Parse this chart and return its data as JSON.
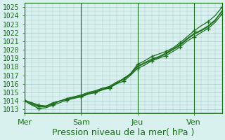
{
  "xlabel": "Pression niveau de la mer( hPa )",
  "background_color": "#d8f0ee",
  "grid_color": "#aacccc",
  "line_color": "#1a6e1a",
  "ylim": [
    1012.5,
    1025.5
  ],
  "xlim": [
    0,
    168
  ],
  "day_labels": [
    "Mer",
    "Sam",
    "Jeu",
    "Ven"
  ],
  "day_positions": [
    0,
    48,
    96,
    144
  ],
  "yticks": [
    1013,
    1014,
    1015,
    1016,
    1017,
    1018,
    1019,
    1020,
    1021,
    1022,
    1023,
    1024,
    1025
  ],
  "series": [
    {
      "x": [
        0,
        6,
        12,
        18,
        24,
        30,
        36,
        42,
        48,
        54,
        60,
        66,
        72,
        78,
        84,
        90,
        96,
        102,
        108,
        114,
        120,
        126,
        132,
        138,
        144,
        150,
        156,
        162,
        168
      ],
      "y": [
        1014.0,
        1013.8,
        1013.5,
        1013.4,
        1013.6,
        1014.0,
        1014.2,
        1014.4,
        1014.5,
        1014.8,
        1015.0,
        1015.3,
        1015.6,
        1016.0,
        1016.6,
        1017.2,
        1018.3,
        1018.7,
        1019.2,
        1019.5,
        1019.8,
        1020.2,
        1020.8,
        1021.5,
        1022.2,
        1022.8,
        1023.3,
        1024.0,
        1025.0
      ],
      "markers": true,
      "marker_every": 2
    },
    {
      "x": [
        0,
        6,
        12,
        18,
        24,
        30,
        36,
        42,
        48,
        54,
        60,
        66,
        72,
        78,
        84,
        90,
        96,
        102,
        108,
        114,
        120,
        126,
        132,
        138,
        144,
        150,
        156,
        162,
        168
      ],
      "y": [
        1014.0,
        1013.5,
        1013.1,
        1013.2,
        1013.5,
        1013.8,
        1014.1,
        1014.3,
        1014.5,
        1014.8,
        1015.0,
        1015.3,
        1015.5,
        1016.0,
        1016.3,
        1017.0,
        1017.8,
        1018.2,
        1018.7,
        1019.0,
        1019.3,
        1019.8,
        1020.3,
        1021.0,
        1021.5,
        1022.0,
        1022.5,
        1023.2,
        1024.2
      ],
      "markers": true,
      "marker_every": 2
    },
    {
      "x": [
        0,
        6,
        12,
        18,
        24,
        30,
        36,
        42,
        48,
        54,
        60,
        66,
        72,
        78,
        84,
        90,
        96,
        102,
        108,
        114,
        120,
        126,
        132,
        138,
        144,
        150,
        156,
        162,
        168
      ],
      "y": [
        1014.0,
        1013.6,
        1013.3,
        1013.3,
        1013.7,
        1014.0,
        1014.2,
        1014.4,
        1014.6,
        1014.9,
        1015.1,
        1015.4,
        1015.6,
        1016.1,
        1016.5,
        1017.1,
        1018.0,
        1018.4,
        1018.8,
        1019.1,
        1019.5,
        1020.0,
        1020.5,
        1021.2,
        1021.8,
        1022.2,
        1022.7,
        1023.4,
        1024.6
      ],
      "markers": false,
      "marker_every": 3
    },
    {
      "x": [
        0,
        6,
        12,
        18,
        24,
        30,
        36,
        42,
        48,
        54,
        60,
        66,
        72,
        78,
        84,
        90,
        96,
        102,
        108,
        114,
        120,
        126,
        132,
        138,
        144,
        150,
        156,
        162,
        168
      ],
      "y": [
        1014.1,
        1013.7,
        1013.4,
        1013.4,
        1013.8,
        1014.0,
        1014.3,
        1014.5,
        1014.7,
        1015.0,
        1015.2,
        1015.5,
        1015.7,
        1016.2,
        1016.6,
        1017.2,
        1018.1,
        1018.5,
        1018.9,
        1019.2,
        1019.6,
        1020.1,
        1020.6,
        1021.3,
        1021.9,
        1022.3,
        1022.8,
        1023.5,
        1024.5
      ],
      "markers": false,
      "marker_every": 3
    }
  ],
  "fontsize_xlabel": 9,
  "fontsize_ytick": 7,
  "fontsize_xtick": 8
}
